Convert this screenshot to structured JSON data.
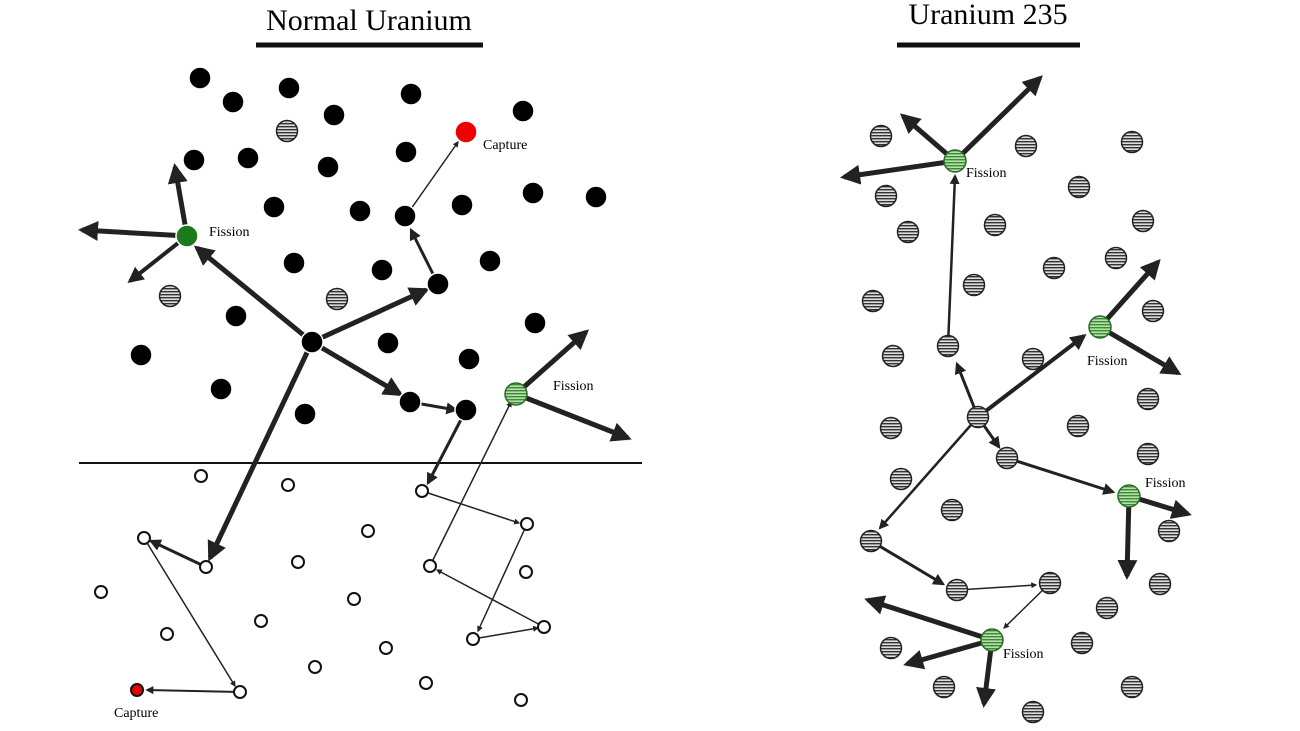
{
  "panels": [
    {
      "title": "Normal Uranium",
      "labels": [
        "Capture",
        "Fission",
        "Fission",
        "Capture"
      ]
    },
    {
      "title": "Uranium 235",
      "labels": [
        "Fission",
        "Fission",
        "Fission",
        "Fission"
      ]
    }
  ]
}
